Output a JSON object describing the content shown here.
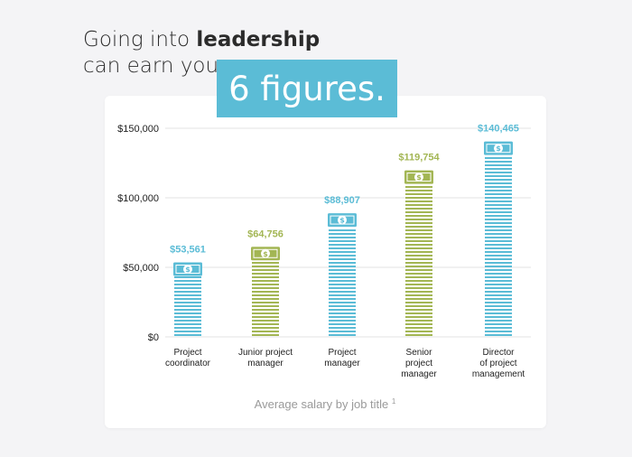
{
  "headline": {
    "line1_prefix": "Going into ",
    "line1_bold": "leadership",
    "line2": "can earn you",
    "highlight": "6 figures."
  },
  "colors": {
    "blue": "#5bbcd6",
    "green": "#a3b654",
    "grid": "#e3e3e3",
    "text": "#222222",
    "caption": "#9a9a9a"
  },
  "chart_data": {
    "type": "bar",
    "title": "",
    "xlabel": "Average salary by job title",
    "xlabel_footnote": "1",
    "ylabel": "",
    "ylim": [
      0,
      150000
    ],
    "yticks": [
      0,
      50000,
      100000,
      150000
    ],
    "ytick_labels": [
      "$0",
      "$50,000",
      "$100,000",
      "$150,000"
    ],
    "grid": true,
    "legend": "none",
    "categories": [
      [
        "Project",
        "coordinator"
      ],
      [
        "Junior project",
        "manager"
      ],
      [
        "Project",
        "manager"
      ],
      [
        "Senior",
        "project",
        "manager"
      ],
      [
        "Director",
        "of project",
        "management"
      ]
    ],
    "values": [
      53561,
      64756,
      88907,
      119754,
      140465
    ],
    "value_labels": [
      "$53,561",
      "$64,756",
      "$88,907",
      "$119,754",
      "$140,465"
    ],
    "bar_colors": [
      "blue",
      "green",
      "blue",
      "green",
      "blue"
    ],
    "bill_icon": "dollar-bill-icon",
    "bill_symbol": "$"
  }
}
